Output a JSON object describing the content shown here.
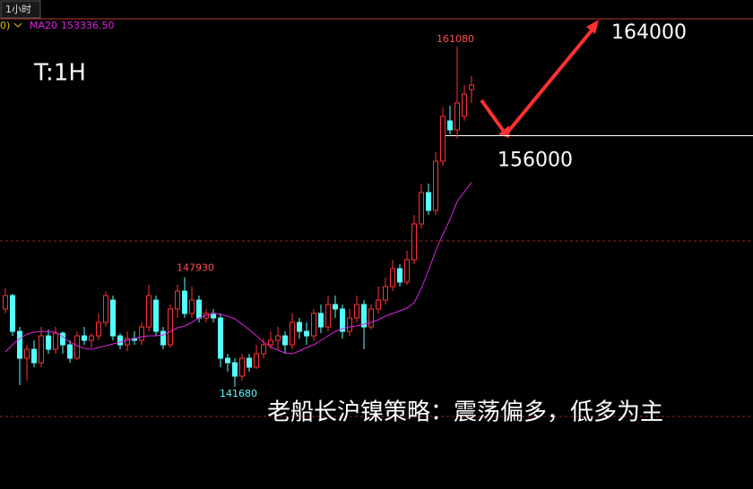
{
  "chart_data": {
    "type": "candlestick",
    "tab": "1小时",
    "param": "0)",
    "title": "T:1H",
    "target_label": "164000",
    "support_level": 156000,
    "strategy": "老船长沪镍策略：震荡偏多，低多为主",
    "ylim": [
      135862,
      163735
    ],
    "up_color": "#ff3232",
    "down_color": "#54ffff",
    "open": [
      146123,
      146889,
      144847,
      143315,
      143826,
      143060,
      144590,
      143826,
      144740,
      144080,
      143315,
      144590,
      144336,
      144590,
      145357,
      146630,
      144590,
      144080,
      144440,
      144336,
      145100,
      146630,
      144847,
      144080,
      146123,
      147140,
      145868,
      146630,
      145610,
      145868,
      145610,
      143315,
      143060,
      142294,
      143315,
      142805,
      143570,
      144080,
      144336,
      144590,
      144080,
      145357,
      144847,
      144590,
      145868,
      145100,
      146378,
      146123,
      144847,
      145610,
      146378,
      145100,
      146123,
      146630,
      147399,
      148420,
      147655,
      148931,
      150973,
      152760,
      151739,
      154546,
      156843,
      156333,
      157099,
      158630
    ],
    "high": [
      147300,
      147000,
      145100,
      144080,
      144336,
      145100,
      144950,
      145100,
      144847,
      144336,
      144847,
      145100,
      144740,
      145868,
      147140,
      146889,
      144740,
      144847,
      144847,
      145357,
      147500,
      146889,
      145100,
      146378,
      147500,
      147930,
      147400,
      146889,
      146123,
      146123,
      145868,
      143570,
      143315,
      143570,
      143570,
      144080,
      144440,
      144847,
      145100,
      144847,
      145868,
      145610,
      145357,
      146123,
      146378,
      146889,
      146889,
      146378,
      146123,
      146889,
      146630,
      146378,
      147399,
      147910,
      148931,
      148675,
      149441,
      151483,
      153270,
      153270,
      155057,
      157609,
      157710,
      161080,
      158885,
      159395
    ],
    "low": [
      145868,
      144590,
      141784,
      142040,
      142805,
      142805,
      143570,
      143570,
      143570,
      143060,
      143210,
      144080,
      143930,
      144336,
      145100,
      144336,
      143826,
      143725,
      144080,
      144080,
      144847,
      144590,
      143826,
      143930,
      145610,
      145610,
      145610,
      145357,
      145357,
      145357,
      142805,
      142550,
      141680,
      142040,
      142550,
      142700,
      143315,
      143826,
      143826,
      143570,
      143826,
      144440,
      144080,
      144336,
      144740,
      144847,
      145610,
      144440,
      144590,
      145357,
      143826,
      144950,
      145868,
      146378,
      147140,
      147399,
      147500,
      148675,
      150718,
      151483,
      151483,
      154290,
      156078,
      155833,
      156843,
      157865
    ],
    "close": [
      146889,
      144847,
      143315,
      143826,
      143060,
      144590,
      143826,
      144740,
      144080,
      143315,
      144590,
      144336,
      144590,
      145357,
      146889,
      144590,
      144080,
      144440,
      144336,
      145100,
      146889,
      144847,
      144080,
      146123,
      147140,
      145868,
      146630,
      145610,
      145868,
      145610,
      143315,
      143060,
      142294,
      143315,
      142805,
      143570,
      144080,
      144336,
      144590,
      144080,
      145357,
      144847,
      144590,
      145868,
      145100,
      146378,
      146123,
      144847,
      145610,
      146378,
      145100,
      146123,
      146630,
      147399,
      148420,
      147655,
      148931,
      150973,
      152760,
      151739,
      154546,
      157099,
      156333,
      157865,
      158375,
      158885
    ],
    "series": [
      {
        "name": "MA20",
        "color": "#e020e0",
        "last_value_label": "153336.50",
        "values": [
          143673,
          144081,
          144438,
          144694,
          144796,
          144847,
          144847,
          144796,
          144540,
          144234,
          144030,
          143877,
          143826,
          143928,
          144030,
          144132,
          144234,
          144336,
          144438,
          144540,
          144591,
          144591,
          144642,
          144847,
          145051,
          145153,
          145357,
          145612,
          145766,
          145868,
          145817,
          145715,
          145562,
          145255,
          144949,
          144591,
          144234,
          143979,
          143775,
          143622,
          143571,
          143724,
          143928,
          144081,
          144336,
          144591,
          144847,
          145000,
          145102,
          145153,
          145255,
          145357,
          145510,
          145715,
          145868,
          146020,
          146174,
          146480,
          147297,
          148314,
          149441,
          150360,
          151228,
          152249,
          152800,
          153336.5
        ]
      }
    ]
  }
}
